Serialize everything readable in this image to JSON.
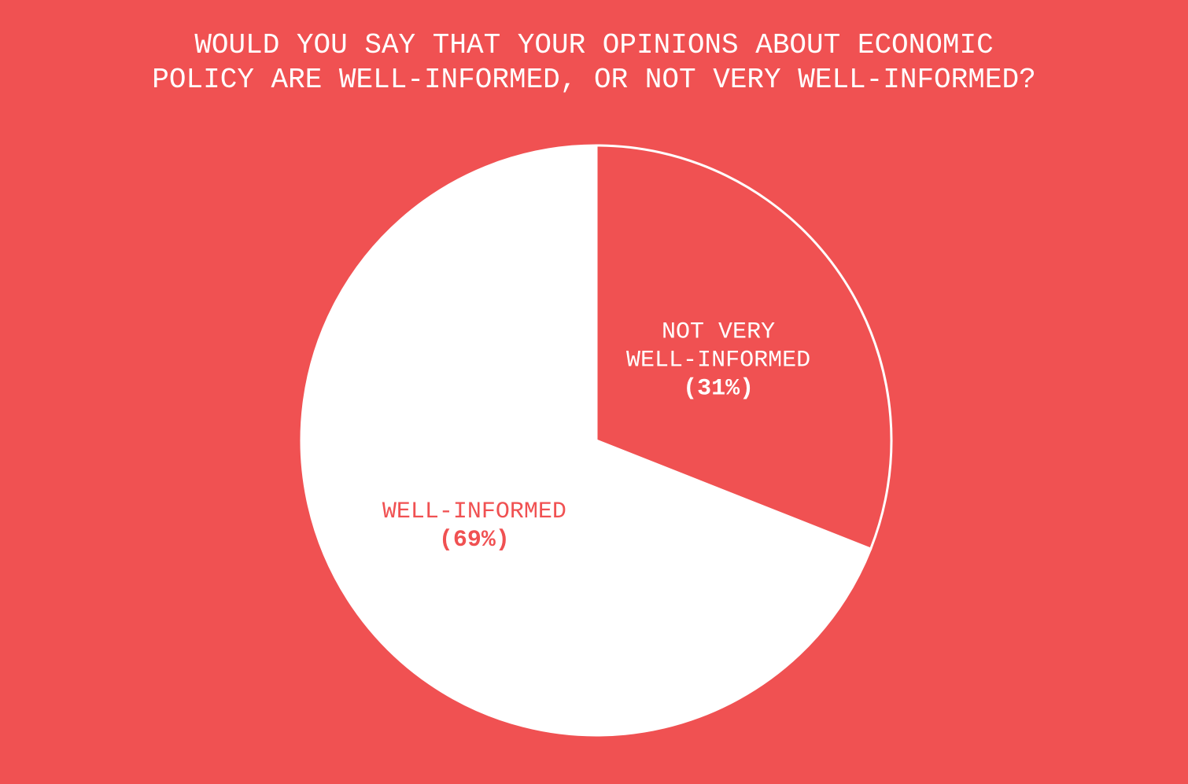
{
  "chart_data": {
    "type": "pie",
    "title_lines": [
      "WOULD YOU SAY THAT YOUR OPINIONS ABOUT ECONOMIC",
      "POLICY ARE WELL-INFORMED, OR NOT VERY WELL-INFORMED?"
    ],
    "slices": [
      {
        "label_lines": [
          "NOT VERY",
          "WELL-INFORMED"
        ],
        "value": 31,
        "pct_label": "(31%)",
        "fill": "#F05152",
        "text_color": "#FFFFFF"
      },
      {
        "label_lines": [
          "WELL-INFORMED"
        ],
        "value": 69,
        "pct_label": "(69%)",
        "fill": "#FFFFFF",
        "text_color": "#F05152"
      }
    ],
    "start": "12 o'clock",
    "direction": "clockwise",
    "background": "#F05152"
  }
}
